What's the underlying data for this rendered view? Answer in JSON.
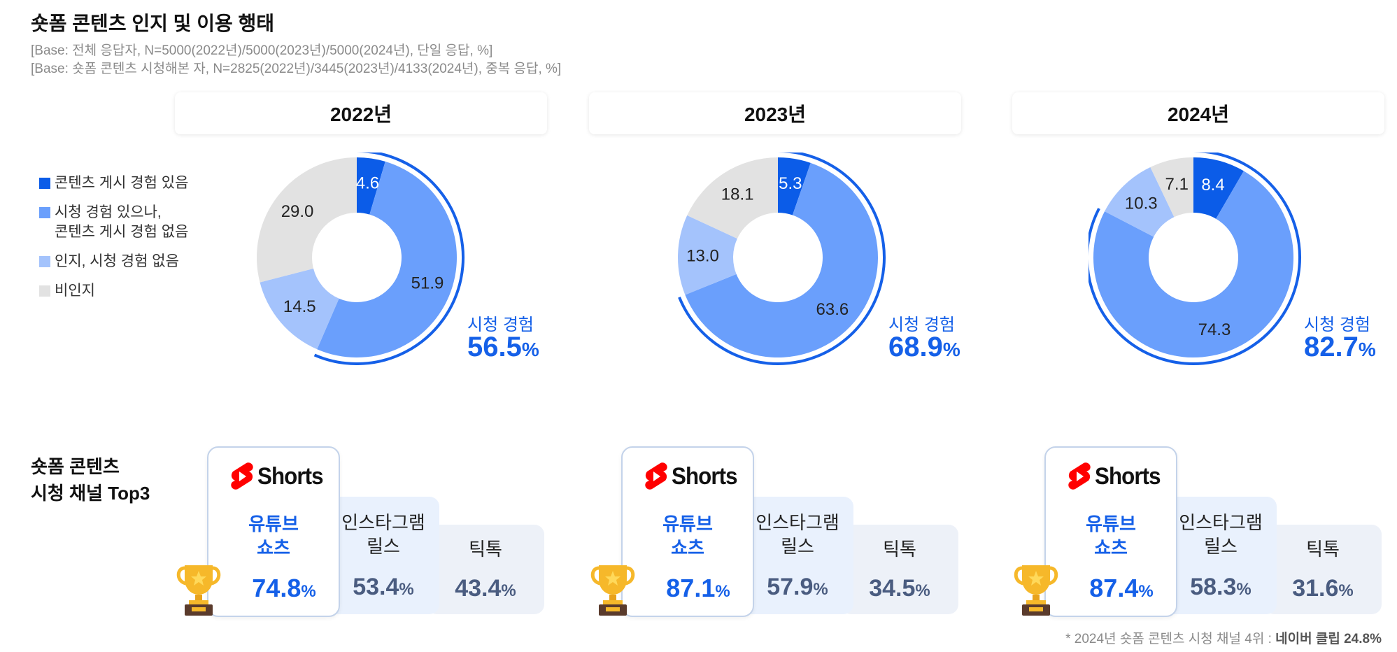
{
  "title": "숏폼 콘텐츠 인지 및 이용 행태",
  "base_lines": [
    "[Base: 전체 응답자, N=5000(2022년)/5000(2023년)/5000(2024년), 단일 응답, %]",
    "[Base: 숏폼 콘텐츠 시청해본 자, N=2825(2022년)/3445(2023년)/4133(2024년), 중복 응답, %]"
  ],
  "legend": [
    {
      "label": "콘텐츠 게시 경험 있음",
      "color": "#0b5ce8"
    },
    {
      "label": "시청 경험 있으나,",
      "label2": "콘텐츠 게시 경험 없음",
      "color": "#6a9ffc"
    },
    {
      "label": "인지, 시청 경험 없음",
      "color": "#a4c3fc"
    },
    {
      "label": "비인지",
      "color": "#e2e2e2"
    }
  ],
  "view_label": "시청 경험",
  "top3_title_line1": "숏폼 콘텐츠",
  "top3_title_line2": "시청 채널 Top3",
  "shorts_logo_text": "Shorts",
  "chart_data": [
    {
      "type": "pie",
      "year": "2022년",
      "categories": [
        "콘텐츠 게시 경험 있음",
        "시청 경험 있으나, 콘텐츠 게시 경험 없음",
        "인지, 시청 경험 없음",
        "비인지"
      ],
      "values": [
        4.6,
        51.9,
        14.5,
        29.0
      ],
      "labels": [
        "4.6",
        "51.9",
        "14.5",
        "29.0"
      ],
      "viewed_total": "56.5",
      "channels": [
        {
          "name1": "유튜브",
          "name2": "쇼츠",
          "value": "74.8"
        },
        {
          "name1": "인스타그램",
          "name2": "릴스",
          "value": "53.4"
        },
        {
          "name1": "틱톡",
          "name2": "",
          "value": "43.4"
        }
      ]
    },
    {
      "type": "pie",
      "year": "2023년",
      "categories": [
        "콘텐츠 게시 경험 있음",
        "시청 경험 있으나, 콘텐츠 게시 경험 없음",
        "인지, 시청 경험 없음",
        "비인지"
      ],
      "values": [
        5.3,
        63.6,
        13.0,
        18.1
      ],
      "labels": [
        "5.3",
        "63.6",
        "13.0",
        "18.1"
      ],
      "viewed_total": "68.9",
      "channels": [
        {
          "name1": "유튜브",
          "name2": "쇼츠",
          "value": "87.1"
        },
        {
          "name1": "인스타그램",
          "name2": "릴스",
          "value": "57.9"
        },
        {
          "name1": "틱톡",
          "name2": "",
          "value": "34.5"
        }
      ]
    },
    {
      "type": "pie",
      "year": "2024년",
      "categories": [
        "콘텐츠 게시 경험 있음",
        "시청 경험 있으나, 콘텐츠 게시 경험 없음",
        "인지, 시청 경험 없음",
        "비인지"
      ],
      "values": [
        8.4,
        74.3,
        10.3,
        7.1
      ],
      "labels": [
        "8.4",
        "74.3",
        "10.3",
        "7.1"
      ],
      "viewed_total": "82.7",
      "channels": [
        {
          "name1": "유튜브",
          "name2": "쇼츠",
          "value": "87.4"
        },
        {
          "name1": "인스타그램",
          "name2": "릴스",
          "value": "58.3"
        },
        {
          "name1": "틱톡",
          "name2": "",
          "value": "31.6"
        }
      ]
    }
  ],
  "pct_sign": "%",
  "footnote": "* 2024년 숏폼 콘텐츠 시청 채널 4위 : ",
  "footnote_bold": "네이버 클립 24.8%"
}
